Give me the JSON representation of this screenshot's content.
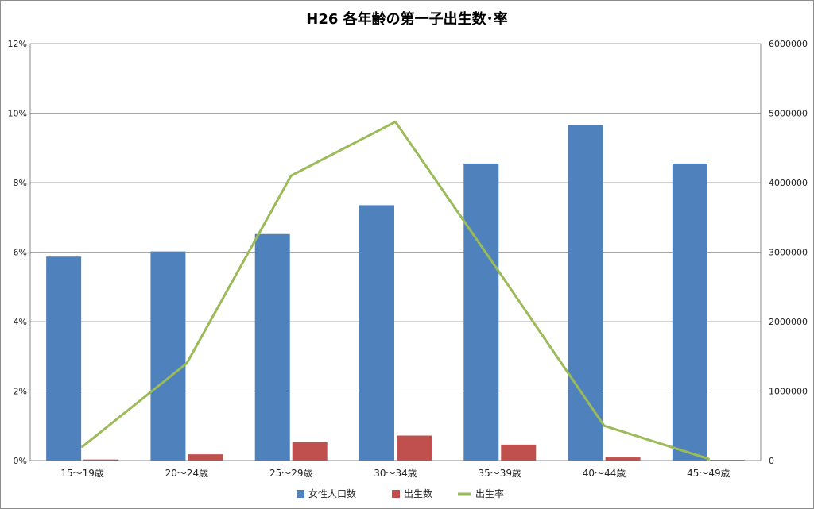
{
  "chart_data": {
    "type": "bar",
    "title": "H26 各年齢の第一子出生数･率",
    "categories": [
      "15〜19歳",
      "20〜24歳",
      "25〜29歳",
      "30〜34歳",
      "35〜39歳",
      "40〜44歳",
      "45〜49歳"
    ],
    "series": [
      {
        "name": "女性人口数",
        "type": "bar",
        "axis": "right",
        "color": "#4f81bd",
        "values": [
          2935000,
          3010000,
          3260000,
          3675000,
          4275000,
          4830000,
          4275000
        ]
      },
      {
        "name": "出生数",
        "type": "bar",
        "axis": "right",
        "color": "#c0504d",
        "values": [
          15000,
          90000,
          265000,
          360000,
          230000,
          45000,
          10000
        ]
      },
      {
        "name": "出生率",
        "type": "line",
        "axis": "left",
        "color": "#9bbb59",
        "values": [
          0.004,
          0.028,
          0.082,
          0.0975,
          0.054,
          0.01,
          0.0005
        ]
      }
    ],
    "y_left": {
      "min": 0,
      "max": 0.12,
      "ticks": [
        "0%",
        "2%",
        "4%",
        "6%",
        "8%",
        "10%",
        "12%"
      ]
    },
    "y_right": {
      "min": 0,
      "max": 6000000,
      "ticks": [
        "0",
        "1000000",
        "2000000",
        "3000000",
        "4000000",
        "5000000",
        "6000000"
      ]
    },
    "grid": true,
    "legend_position": "bottom"
  }
}
